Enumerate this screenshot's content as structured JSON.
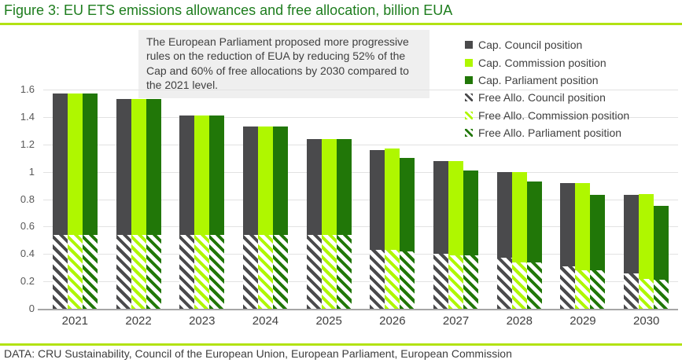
{
  "header": {
    "title": "Figure 3: EU ETS emissions allowances and free allocation, billion EUA"
  },
  "annotation": {
    "text": "The European Parliament proposed more progressive rules on the reduction of EUA by reducing 52% of the Cap and 60% of free allocations by 2030 compared to the 2021 level."
  },
  "footer": {
    "source": "DATA: CRU Sustainability, Council of the European Union, European Parliament, European Commission"
  },
  "colors": {
    "title_green": "#1e7d1e",
    "accent_lime_rule": "#b2e213",
    "council_gray": "#4a4a4c",
    "commission_lime": "#aff700",
    "parliament_green": "#217708",
    "annotation_bg": "#efefef",
    "gridline": "#e2e2e2",
    "axis_line": "#a6a6a6",
    "tick_text": "#595959",
    "label_text": "#404040"
  },
  "chart_data": {
    "type": "bar",
    "title": "Figure 3: EU ETS emissions allowances and free allocation, billion EUA",
    "xlabel": "",
    "ylabel": "billion EUA",
    "ylim": [
      0,
      1.6
    ],
    "yticks": [
      "0",
      "0.2",
      "0.4",
      "0.6",
      "0.8",
      "1",
      "1.2",
      "1.4",
      "1.6"
    ],
    "grid": "horizontal",
    "legend_position": "top-right",
    "note": "Each bar total height = cap; lower hatched segment = free allocation portion of the same position",
    "categories": [
      "2021",
      "2022",
      "2023",
      "2024",
      "2025",
      "2026",
      "2027",
      "2028",
      "2029",
      "2030"
    ],
    "series": [
      {
        "name": "Cap. Council position",
        "role": "cap",
        "style": "solid",
        "color": "#4a4a4c",
        "values": [
          1.57,
          1.53,
          1.41,
          1.33,
          1.24,
          1.16,
          1.08,
          1.0,
          0.92,
          0.83
        ]
      },
      {
        "name": "Cap. Commission position",
        "role": "cap",
        "style": "solid",
        "color": "#aff700",
        "values": [
          1.57,
          1.53,
          1.41,
          1.33,
          1.24,
          1.17,
          1.08,
          1.0,
          0.92,
          0.84
        ]
      },
      {
        "name": "Cap. Parliament position",
        "role": "cap",
        "style": "solid",
        "color": "#217708",
        "values": [
          1.57,
          1.53,
          1.41,
          1.33,
          1.24,
          1.1,
          1.01,
          0.93,
          0.83,
          0.75
        ]
      },
      {
        "name": "Free Allo. Council position",
        "role": "free_allocation",
        "style": "hatched",
        "color": "#4a4a4c",
        "values": [
          0.54,
          0.54,
          0.54,
          0.54,
          0.54,
          0.43,
          0.4,
          0.37,
          0.31,
          0.26
        ]
      },
      {
        "name": "Free Allo. Commission position",
        "role": "free_allocation",
        "style": "hatched",
        "color": "#aff700",
        "values": [
          0.54,
          0.54,
          0.54,
          0.54,
          0.54,
          0.43,
          0.39,
          0.34,
          0.28,
          0.22
        ]
      },
      {
        "name": "Free Allo. Parliament position",
        "role": "free_allocation",
        "style": "hatched",
        "color": "#217708",
        "values": [
          0.54,
          0.54,
          0.54,
          0.54,
          0.54,
          0.42,
          0.39,
          0.34,
          0.28,
          0.21
        ]
      }
    ]
  }
}
